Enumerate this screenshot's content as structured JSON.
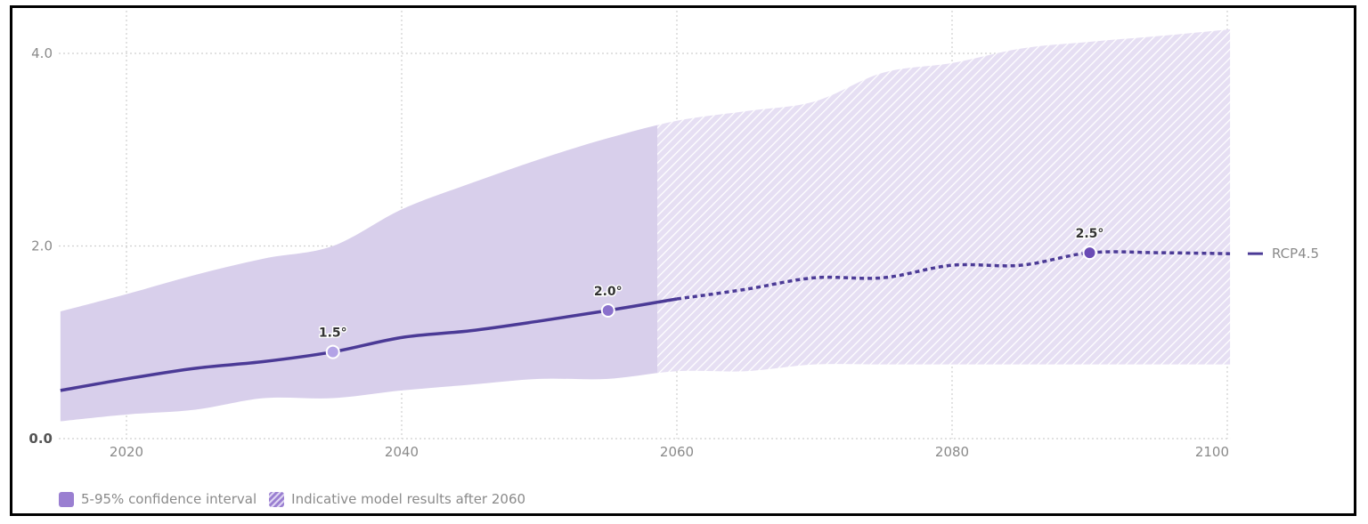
{
  "chart_data": {
    "type": "area",
    "title": "",
    "xlabel": "",
    "ylabel": "",
    "xlim": [
      2015.2,
      2100.2
    ],
    "ylim": [
      0,
      4.3
    ],
    "x_ticks": [
      2020,
      2040,
      2060,
      2080,
      2100
    ],
    "x_tick_labels": [
      "2020",
      "2040",
      "2060",
      "2080",
      "2100"
    ],
    "y_ticks": [
      0,
      2,
      4
    ],
    "y_tick_labels": [
      "0.0",
      "2.0",
      "4.0"
    ],
    "grid": true,
    "hatch_after": 2060,
    "confidence_interval": {
      "name": "5-95% confidence interval",
      "x": [
        2015.2,
        2020,
        2025,
        2030,
        2035,
        2040,
        2045,
        2050,
        2055,
        2060,
        2065,
        2070,
        2075,
        2080,
        2085,
        2090,
        2095,
        2100.2
      ],
      "upper": [
        1.32,
        1.5,
        1.7,
        1.87,
        2.0,
        2.38,
        2.65,
        2.9,
        3.12,
        3.3,
        3.4,
        3.5,
        3.8,
        3.9,
        4.05,
        4.12,
        4.18,
        4.25
      ],
      "lower": [
        0.18,
        0.25,
        0.3,
        0.42,
        0.42,
        0.5,
        0.56,
        0.62,
        0.62,
        0.7,
        0.7,
        0.77,
        0.77,
        0.77,
        0.77,
        0.77,
        0.77,
        0.77
      ]
    },
    "series": [
      {
        "name": "RCP4.5",
        "color": "#4b3a96",
        "x": [
          2015.2,
          2020,
          2025,
          2030,
          2035,
          2040,
          2045,
          2050,
          2055,
          2060,
          2065,
          2070,
          2075,
          2080,
          2085,
          2090,
          2095,
          2100.2
        ],
        "values": [
          0.5,
          0.62,
          0.73,
          0.8,
          0.9,
          1.05,
          1.12,
          1.22,
          1.33,
          1.45,
          1.55,
          1.67,
          1.67,
          1.8,
          1.8,
          1.93,
          1.93,
          1.92
        ],
        "dashed_after": 2060
      }
    ],
    "annotations": [
      {
        "x": 2035,
        "y": 0.9,
        "label": "1.5°",
        "marker_color": "#b3a3e6"
      },
      {
        "x": 2055,
        "y": 1.33,
        "label": "2.0°",
        "marker_color": "#8a70cc"
      },
      {
        "x": 2090,
        "y": 1.93,
        "label": "2.5°",
        "marker_color": "#6a4bb5"
      }
    ],
    "legend": {
      "placement": "bottom-left",
      "items": [
        {
          "label": "5-95% confidence interval",
          "style": "solid"
        },
        {
          "label": "Indicative model results after 2060",
          "style": "hatched"
        }
      ]
    }
  },
  "colors": {
    "band": "#d8cfeb",
    "line": "#4b3a96",
    "grid": "#cfcfcf"
  }
}
